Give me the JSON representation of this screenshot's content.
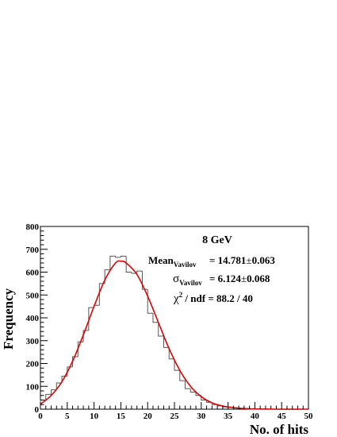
{
  "chart_data": {
    "type": "bar",
    "title": "",
    "xlabel": "No. of hits",
    "ylabel": "Frequency",
    "xlim": [
      0,
      50
    ],
    "ylim": [
      0,
      800
    ],
    "x_ticks": [
      0,
      5,
      10,
      15,
      20,
      25,
      30,
      35,
      40,
      45,
      50
    ],
    "y_ticks": [
      0,
      100,
      200,
      300,
      400,
      500,
      600,
      700,
      800
    ],
    "grid": false,
    "legend": "none",
    "histogram": {
      "bin_width": 1,
      "bin_edges_start": 0,
      "counts": [
        40,
        65,
        85,
        115,
        145,
        185,
        230,
        295,
        345,
        445,
        455,
        550,
        610,
        670,
        665,
        670,
        600,
        595,
        605,
        525,
        420,
        380,
        320,
        270,
        220,
        170,
        125,
        90,
        75,
        60,
        40,
        30,
        20,
        15,
        10,
        8,
        5,
        3,
        2,
        1,
        0,
        0,
        0,
        0,
        0,
        0,
        0,
        0,
        0,
        0
      ],
      "color": "#555555"
    },
    "fit": {
      "name": "Vavilov",
      "color": "#dd0000",
      "peak_x": 14.781,
      "peak_y": 648,
      "width": 6.124,
      "samples": [
        [
          0,
          22
        ],
        [
          2,
          60
        ],
        [
          4,
          120
        ],
        [
          6,
          210
        ],
        [
          8,
          325
        ],
        [
          10,
          450
        ],
        [
          12,
          565
        ],
        [
          14,
          640
        ],
        [
          15,
          648
        ],
        [
          16,
          640
        ],
        [
          18,
          590
        ],
        [
          20,
          495
        ],
        [
          22,
          380
        ],
        [
          24,
          265
        ],
        [
          26,
          170
        ],
        [
          28,
          100
        ],
        [
          30,
          55
        ],
        [
          32,
          28
        ],
        [
          34,
          14
        ],
        [
          36,
          7
        ],
        [
          38,
          3
        ],
        [
          40,
          1
        ],
        [
          44,
          0
        ],
        [
          50,
          0
        ]
      ]
    },
    "annotations": {
      "energy": "8 GeV",
      "mean_label": "Mean",
      "mean_sub": "Vavilov",
      "mean_value": "=  14.781",
      "mean_err": "0.063",
      "sigma_label": "σ",
      "sigma_sub": "Vavilov",
      "sigma_value": "=  6.124",
      "sigma_err": "0.068",
      "pm": "±",
      "chi2": "χ",
      "chi2_sup": "2",
      "chi2_rest": " / ndf   =  88.2 / 40"
    }
  }
}
